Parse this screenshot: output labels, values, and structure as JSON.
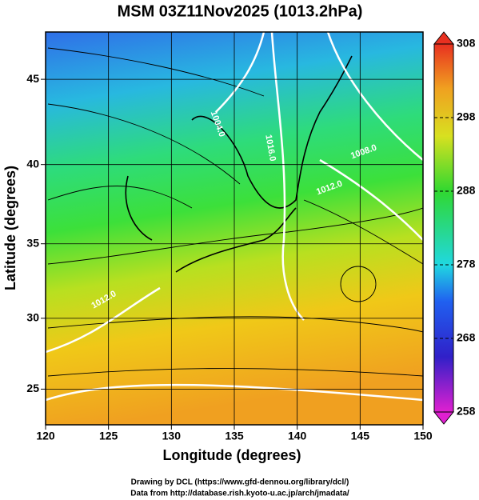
{
  "chart_data": {
    "type": "map",
    "title": "MSM 03Z11Nov2025 (1013.2hPa)",
    "x_label": "Longitude (degrees)",
    "y_label": "Latitude  (degrees)",
    "xlim": [
      120,
      150
    ],
    "xticks": [
      120,
      125,
      130,
      135,
      140,
      145,
      150
    ],
    "ylim": [
      22.4,
      47.6
    ],
    "yticks": [
      25,
      30,
      35,
      40,
      45
    ],
    "projection": "mercator",
    "grid": true,
    "colorbar": {
      "lim": [
        258,
        308
      ],
      "ticks": [
        258,
        268,
        278,
        288,
        298,
        308
      ]
    },
    "contour_labels": [
      "1004.0",
      "1016.0",
      "1008.0",
      "1012.0",
      "1012.0"
    ],
    "credits": [
      "Drawing by DCL (https://www.gfd-dennou.org/library/dcl/)",
      "Data from http://database.rish.kyoto-u.ac.jp/arch/jmadata/"
    ]
  }
}
